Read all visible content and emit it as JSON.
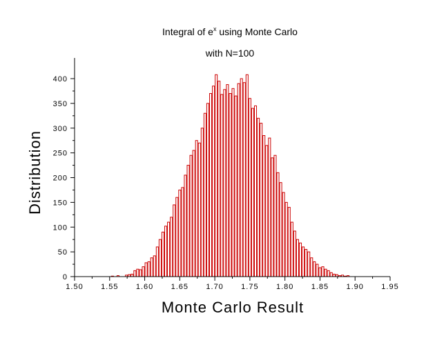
{
  "chart_data": {
    "type": "bar",
    "title_prefix": "Integral of e",
    "title_sup": "x",
    "title_suffix": " using Monte Carlo",
    "subtitle": "with N=100",
    "xlabel": "Monte Carlo Result",
    "ylabel": "Distribution",
    "xlim": [
      1.5,
      1.95
    ],
    "ylim": [
      0,
      430
    ],
    "xticks": [
      "1.50",
      "1.55",
      "1.60",
      "1.65",
      "1.70",
      "1.75",
      "1.80",
      "1.85",
      "1.90",
      "1.95"
    ],
    "yticks": [
      "0",
      "50",
      "100",
      "150",
      "200",
      "250",
      "300",
      "350",
      "400"
    ],
    "bin_width": 0.004,
    "grid": false,
    "legend": "none",
    "colors": {
      "bar_edge": "#cc0000",
      "bar_fill": "#ffffff",
      "axis": "#000000"
    },
    "bins_x": [
      1.554,
      1.562,
      1.574,
      1.578,
      1.582,
      1.586,
      1.59,
      1.594,
      1.598,
      1.602,
      1.606,
      1.61,
      1.614,
      1.618,
      1.622,
      1.626,
      1.63,
      1.634,
      1.638,
      1.642,
      1.646,
      1.65,
      1.654,
      1.658,
      1.662,
      1.666,
      1.67,
      1.674,
      1.678,
      1.682,
      1.686,
      1.69,
      1.694,
      1.698,
      1.702,
      1.706,
      1.71,
      1.714,
      1.718,
      1.722,
      1.726,
      1.73,
      1.734,
      1.738,
      1.742,
      1.746,
      1.75,
      1.754,
      1.758,
      1.762,
      1.766,
      1.77,
      1.774,
      1.778,
      1.782,
      1.786,
      1.79,
      1.794,
      1.798,
      1.802,
      1.806,
      1.81,
      1.814,
      1.818,
      1.822,
      1.826,
      1.83,
      1.834,
      1.838,
      1.842,
      1.846,
      1.85,
      1.854,
      1.858,
      1.862,
      1.866,
      1.87,
      1.874,
      1.878,
      1.882,
      1.886,
      1.89
    ],
    "bins_y": [
      1,
      2,
      3,
      4,
      5,
      12,
      15,
      14,
      20,
      28,
      30,
      38,
      42,
      60,
      75,
      90,
      102,
      110,
      120,
      145,
      160,
      175,
      180,
      205,
      225,
      245,
      255,
      275,
      270,
      300,
      330,
      350,
      370,
      385,
      408,
      395,
      368,
      378,
      388,
      370,
      380,
      365,
      390,
      400,
      392,
      408,
      360,
      340,
      345,
      320,
      310,
      285,
      265,
      280,
      240,
      245,
      210,
      190,
      170,
      150,
      140,
      110,
      92,
      75,
      68,
      60,
      55,
      50,
      38,
      30,
      25,
      18,
      20,
      15,
      12,
      8,
      5,
      4,
      2,
      3,
      1,
      2
    ]
  }
}
